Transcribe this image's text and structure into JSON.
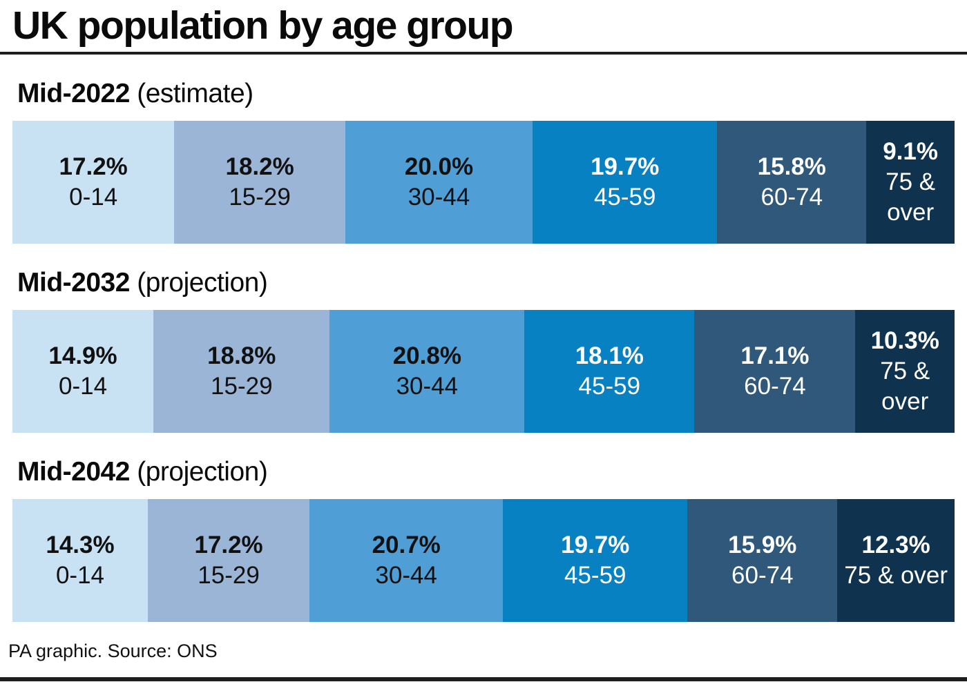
{
  "chart_data": {
    "type": "bar",
    "orientation": "horizontal",
    "stacking": "percent-of-total-100",
    "title": "UK population by age group",
    "categories": [
      "0-14",
      "15-29",
      "30-44",
      "45-59",
      "60-74",
      "75 & over"
    ],
    "series": [
      {
        "label": "Mid-2022",
        "note": "(estimate)",
        "values": [
          17.2,
          18.2,
          20.0,
          19.7,
          15.8,
          9.1
        ],
        "display": [
          "17.2%",
          "18.2%",
          "20.0%",
          "19.7%",
          "15.8%",
          "9.1%"
        ]
      },
      {
        "label": "Mid-2032",
        "note": "(projection)",
        "values": [
          14.9,
          18.8,
          20.8,
          18.1,
          17.1,
          10.3
        ],
        "display": [
          "14.9%",
          "18.8%",
          "20.8%",
          "18.1%",
          "17.1%",
          "10.3%"
        ]
      },
      {
        "label": "Mid-2042",
        "note": "(projection)",
        "values": [
          14.3,
          17.2,
          20.7,
          19.7,
          15.9,
          12.3
        ],
        "display": [
          "14.3%",
          "17.2%",
          "20.7%",
          "19.7%",
          "15.9%",
          "12.3%"
        ]
      }
    ],
    "segment_colors": [
      "#c8e2f4",
      "#9bb5d7",
      "#4f9ed6",
      "#0881c3",
      "#2f587b",
      "#0f334e"
    ],
    "segment_text_colors": [
      "#111111",
      "#111111",
      "#111111",
      "#ffffff",
      "#ffffff",
      "#ffffff"
    ],
    "legend_position": "labels-inside-segments",
    "source": "PA graphic. Source: ONS"
  },
  "theme": {
    "background": "#ffffff",
    "rule_color": "#1d1d1b"
  }
}
